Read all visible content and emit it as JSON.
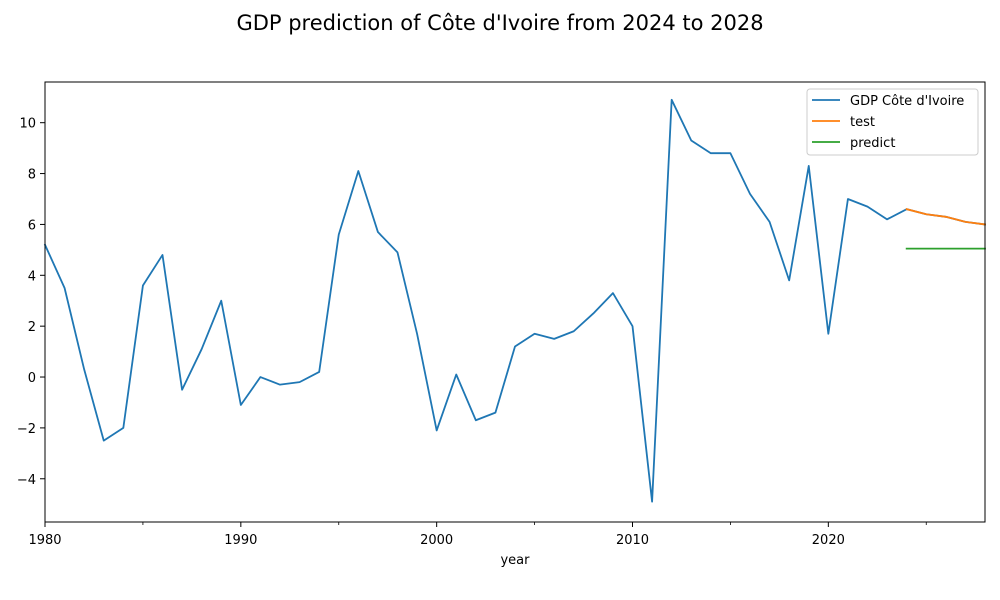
{
  "chart_data": {
    "type": "line",
    "title": "GDP prediction of Côte d'Ivoire from 2024 to 2028",
    "xlabel": "year",
    "ylabel": "",
    "xlim": [
      1980,
      2028
    ],
    "ylim": [
      -5.7,
      11.6
    ],
    "x_ticks": [
      1980,
      1990,
      2000,
      2010,
      2020
    ],
    "y_ticks": [
      -4,
      -2,
      0,
      2,
      4,
      6,
      8,
      10
    ],
    "legend_position": "top-right",
    "grid": false,
    "series": [
      {
        "name": "GDP Côte d'Ivoire",
        "color": "#1f77b4",
        "x": [
          1980,
          1981,
          1982,
          1983,
          1984,
          1985,
          1986,
          1987,
          1988,
          1989,
          1990,
          1991,
          1992,
          1993,
          1994,
          1995,
          1996,
          1997,
          1998,
          1999,
          2000,
          2001,
          2002,
          2003,
          2004,
          2005,
          2006,
          2007,
          2008,
          2009,
          2010,
          2011,
          2012,
          2013,
          2014,
          2015,
          2016,
          2017,
          2018,
          2019,
          2020,
          2021,
          2022,
          2023,
          2024,
          2025,
          2026,
          2027,
          2028
        ],
        "values": [
          5.2,
          3.5,
          0.3,
          -2.5,
          -2.0,
          3.6,
          4.8,
          -0.5,
          1.1,
          3.0,
          -1.1,
          0.0,
          -0.3,
          -0.2,
          0.2,
          5.6,
          8.1,
          5.7,
          4.9,
          1.7,
          -2.1,
          0.1,
          -1.7,
          -1.4,
          1.2,
          1.7,
          1.5,
          1.8,
          2.5,
          3.3,
          2.0,
          -4.9,
          10.9,
          9.3,
          8.8,
          8.8,
          7.2,
          6.1,
          3.8,
          8.3,
          1.7,
          7.0,
          6.7,
          6.2,
          6.6,
          6.4,
          6.3,
          6.1,
          6.0
        ]
      },
      {
        "name": "test",
        "color": "#ff7f0e",
        "x": [
          2024,
          2025,
          2026,
          2027,
          2028
        ],
        "values": [
          6.6,
          6.4,
          6.3,
          6.1,
          6.0
        ]
      },
      {
        "name": "predict",
        "color": "#2ca02c",
        "x": [
          2024,
          2025,
          2026,
          2027,
          2028
        ],
        "values": [
          5.05,
          5.05,
          5.05,
          5.05,
          5.05
        ]
      }
    ]
  }
}
